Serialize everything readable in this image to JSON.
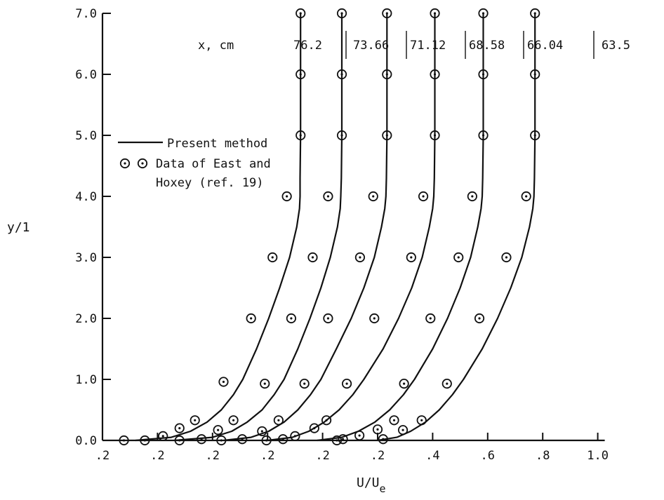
{
  "chart_data": {
    "type": "line",
    "title": "",
    "xlabel": "U/U",
    "xlabel_subscript": "e",
    "ylabel": "y/1",
    "xlim": [
      0.0,
      1.0
    ],
    "ylim": [
      0.0,
      7.0
    ],
    "x_ticks": [
      {
        "value": 0.0,
        "label": ".2"
      },
      {
        "value": 0.1,
        "label": ".2"
      },
      {
        "value": 0.2,
        "label": ".2"
      },
      {
        "value": 0.3,
        "label": ".2"
      },
      {
        "value": 0.4,
        "label": ".2"
      },
      {
        "value": 0.5,
        "label": ".2"
      },
      {
        "value": 0.6,
        "label": ".4"
      },
      {
        "value": 0.7,
        "label": ".6"
      },
      {
        "value": 0.8,
        "label": ".8"
      },
      {
        "value": 0.9,
        "label": "1.0"
      }
    ],
    "y_ticks": [
      {
        "value": 0.0,
        "label": "0.0"
      },
      {
        "value": 1.0,
        "label": "1.0"
      },
      {
        "value": 2.0,
        "label": "2.0"
      },
      {
        "value": 3.0,
        "label": "3.0"
      },
      {
        "value": 4.0,
        "label": "4.0"
      },
      {
        "value": 5.0,
        "label": "5.0"
      },
      {
        "value": 6.0,
        "label": "6.0"
      },
      {
        "value": 7.0,
        "label": "7.0"
      }
    ],
    "legend": {
      "placement": "left",
      "line_label": "Present method",
      "marker_label_line1": "Data of East and",
      "marker_label_line2": "Hoxey (ref. 19)"
    },
    "station_header": "x, cm",
    "series": [
      {
        "name": "76.2",
        "curve_y": [
          0.0,
          0.05,
          0.15,
          0.3,
          0.5,
          0.75,
          1.0,
          1.5,
          2.0,
          2.5,
          3.0,
          3.5,
          3.8,
          4.0,
          4.3,
          5.0,
          6.0,
          7.0
        ],
        "curve_x": [
          0.06,
          0.125,
          0.16,
          0.19,
          0.216,
          0.238,
          0.255,
          0.28,
          0.302,
          0.322,
          0.34,
          0.353,
          0.358,
          0.359,
          0.359,
          0.36,
          0.36,
          0.36
        ],
        "points_y": [
          0.0,
          0.07,
          0.2,
          0.33,
          0.96,
          2.0,
          3.0,
          4.0,
          5.0,
          6.0,
          7.0
        ],
        "points_x": [
          0.039,
          0.11,
          0.14,
          0.168,
          0.22,
          0.27,
          0.309,
          0.335,
          0.36,
          0.36,
          0.36
        ]
      },
      {
        "name": "73.66",
        "curve_y": [
          0.0,
          0.05,
          0.15,
          0.3,
          0.5,
          0.75,
          1.0,
          1.5,
          2.0,
          2.5,
          3.0,
          3.5,
          3.8,
          4.0,
          4.3,
          5.0,
          6.0,
          7.0
        ],
        "curve_x": [
          0.13,
          0.2,
          0.235,
          0.263,
          0.29,
          0.312,
          0.33,
          0.355,
          0.377,
          0.397,
          0.414,
          0.427,
          0.432,
          0.433,
          0.434,
          0.435,
          0.435,
          0.435
        ],
        "points_y": [
          0.0,
          0.02,
          0.17,
          0.33,
          0.93,
          2.0,
          3.0,
          4.0,
          5.0,
          6.0,
          7.0
        ],
        "points_x": [
          0.077,
          0.18,
          0.21,
          0.238,
          0.295,
          0.343,
          0.382,
          0.41,
          0.435,
          0.435,
          0.435
        ]
      },
      {
        "name": "71.12",
        "curve_y": [
          0.0,
          0.05,
          0.15,
          0.3,
          0.5,
          0.75,
          1.0,
          1.5,
          2.0,
          2.5,
          3.0,
          3.5,
          3.8,
          4.0,
          4.3,
          5.0,
          6.0,
          7.0
        ],
        "curve_x": [
          0.22,
          0.27,
          0.302,
          0.33,
          0.355,
          0.378,
          0.397,
          0.425,
          0.452,
          0.475,
          0.494,
          0.507,
          0.513,
          0.515,
          0.516,
          0.517,
          0.517,
          0.517
        ],
        "points_y": [
          0.0,
          0.02,
          0.15,
          0.33,
          0.93,
          2.0,
          3.0,
          4.0,
          5.0,
          6.0,
          7.0
        ],
        "points_x": [
          0.14,
          0.254,
          0.29,
          0.32,
          0.367,
          0.41,
          0.468,
          0.492,
          0.517,
          0.517,
          0.517
        ]
      },
      {
        "name": "68.58",
        "curve_y": [
          0.0,
          0.05,
          0.15,
          0.3,
          0.5,
          0.75,
          1.0,
          1.5,
          2.0,
          2.5,
          3.0,
          3.5,
          3.8,
          4.0,
          4.3,
          5.0,
          6.0,
          7.0
        ],
        "curve_x": [
          0.3,
          0.345,
          0.375,
          0.403,
          0.43,
          0.455,
          0.475,
          0.51,
          0.538,
          0.562,
          0.581,
          0.594,
          0.6,
          0.602,
          0.603,
          0.604,
          0.604,
          0.604
        ],
        "points_y": [
          0.0,
          0.02,
          0.07,
          0.2,
          0.33,
          0.93,
          2.0,
          3.0,
          4.0,
          5.0,
          6.0,
          7.0
        ],
        "points_x": [
          0.216,
          0.328,
          0.35,
          0.385,
          0.407,
          0.444,
          0.494,
          0.561,
          0.583,
          0.604,
          0.604,
          0.604
        ]
      },
      {
        "name": "66.04",
        "curve_y": [
          0.0,
          0.05,
          0.15,
          0.3,
          0.5,
          0.75,
          1.0,
          1.5,
          2.0,
          2.5,
          3.0,
          3.5,
          3.8,
          4.0,
          4.3,
          5.0,
          6.0,
          7.0
        ],
        "curve_x": [
          0.39,
          0.435,
          0.465,
          0.495,
          0.522,
          0.547,
          0.567,
          0.6,
          0.627,
          0.65,
          0.669,
          0.682,
          0.688,
          0.69,
          0.691,
          0.692,
          0.692,
          0.692
        ],
        "points_y": [
          0.0,
          0.02,
          0.08,
          0.18,
          0.33,
          0.93,
          2.0,
          3.0,
          4.0,
          5.0,
          6.0,
          7.0
        ],
        "points_x": [
          0.298,
          0.437,
          0.467,
          0.5,
          0.53,
          0.548,
          0.596,
          0.647,
          0.672,
          0.692,
          0.692,
          0.692
        ]
      },
      {
        "name": "63.5",
        "curve_y": [
          0.0,
          0.05,
          0.15,
          0.3,
          0.5,
          0.75,
          1.0,
          1.5,
          2.0,
          2.5,
          3.0,
          3.5,
          3.8,
          4.0,
          4.3,
          5.0,
          6.0,
          7.0
        ],
        "curve_x": [
          0.5,
          0.535,
          0.56,
          0.587,
          0.612,
          0.636,
          0.656,
          0.69,
          0.718,
          0.742,
          0.762,
          0.776,
          0.782,
          0.784,
          0.785,
          0.786,
          0.786,
          0.786
        ],
        "points_y": [
          0.0,
          0.02,
          0.17,
          0.33,
          0.93,
          2.0,
          3.0,
          4.0,
          5.0,
          6.0,
          7.0
        ],
        "points_x": [
          0.426,
          0.51,
          0.546,
          0.58,
          0.626,
          0.685,
          0.734,
          0.77,
          0.786,
          0.786,
          0.786
        ]
      }
    ]
  }
}
